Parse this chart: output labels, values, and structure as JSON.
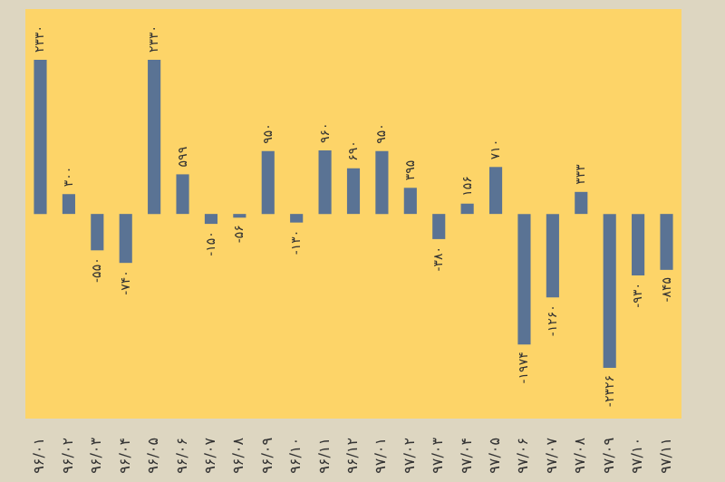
{
  "chart_data": {
    "type": "bar",
    "categories": [
      "۹۶/۰۱",
      "۹۶/۰۲",
      "۹۶/۰۳",
      "۹۶/۰۴",
      "۹۶/۰۵",
      "۹۶/۰۶",
      "۹۶/۰۷",
      "۹۶/۰۸",
      "۹۶/۰۹",
      "۹۶/۱۰",
      "۹۶/۱۱",
      "۹۶/۱۲",
      "۹۷/۰۱",
      "۹۷/۰۲",
      "۹۷/۰۳",
      "۹۷/۰۴",
      "۹۷/۰۵",
      "۹۷/۰۶",
      "۹۷/۰۷",
      "۹۷/۰۸",
      "۹۷/۰۹",
      "۹۷/۱۰",
      "۹۷/۱۱"
    ],
    "values": [
      2330,
      300,
      -550,
      -740,
      2330,
      599,
      -150,
      -56,
      950,
      -130,
      960,
      690,
      950,
      395,
      -380,
      156,
      710,
      -1974,
      -1260,
      333,
      -2326,
      -930,
      -845
    ],
    "value_labels": [
      "۲۳۳۰",
      "۳۰۰",
      "-۵۵۰",
      "-۷۴۰",
      "۲۳۳۰",
      "۵۹۹",
      "-۱۵۰",
      "-۵۶",
      "۹۵۰",
      "-۱۳۰",
      "۹۶۰",
      "۶۹۰",
      "۹۵۰",
      "۳۹۵",
      "-۳۸۰",
      "۱۵۶",
      "۷۱۰",
      "-۱۹۷۴",
      "-۱۲۶۰",
      "۳۳۳",
      "-۲۳۲۶",
      "-۹۳۰",
      "-۸۴۵"
    ],
    "color": "#5a7394"
  }
}
